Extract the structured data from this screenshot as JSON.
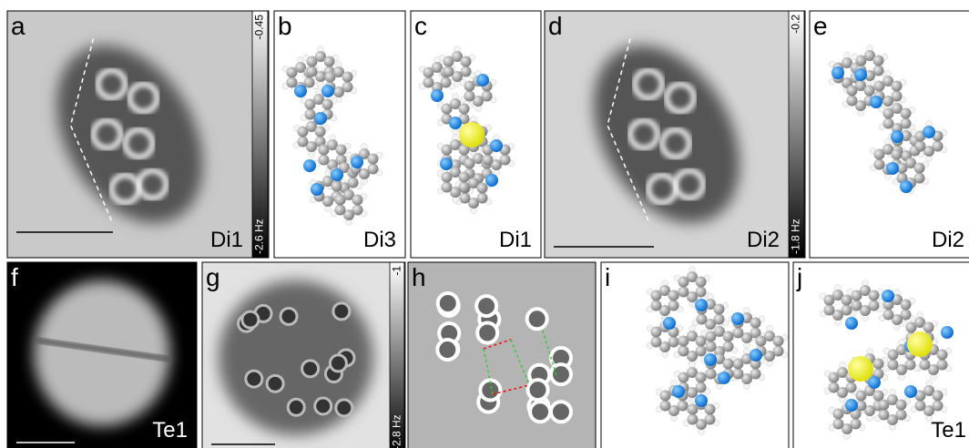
{
  "panels": [
    {
      "letter": "a",
      "label": "Di1",
      "colorbar": {
        "top": "-0.45",
        "bottom": "-2.6 Hz"
      }
    },
    {
      "letter": "b",
      "label": "Di3"
    },
    {
      "letter": "c",
      "label": "Di1"
    },
    {
      "letter": "d",
      "label": "Di2",
      "colorbar": {
        "top": "-0.2",
        "bottom": "-1.8 Hz"
      }
    },
    {
      "letter": "e",
      "label": "Di2"
    },
    {
      "letter": "f",
      "label": "Te1"
    },
    {
      "letter": "g",
      "colorbar": {
        "top": "-1",
        "bottom": "-2.8 Hz"
      }
    },
    {
      "letter": "h"
    },
    {
      "letter": "i"
    },
    {
      "letter": "j",
      "label": "Te1"
    }
  ]
}
